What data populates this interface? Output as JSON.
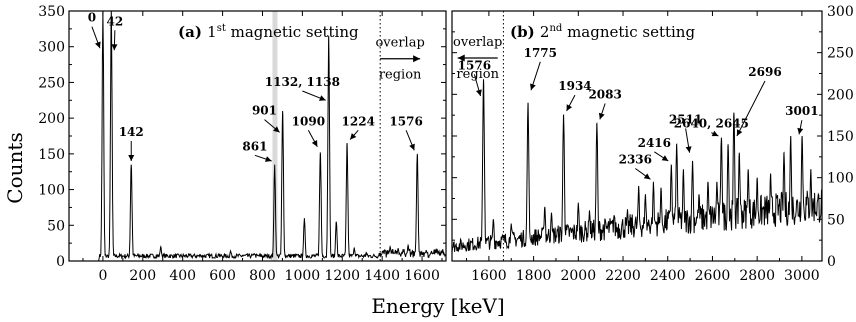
{
  "chart_data": [
    {
      "type": "line",
      "panel_title": "(a) 1st magnetic setting",
      "panel_tag": "(a)",
      "panel_text_main": "1",
      "panel_text_sup": "st",
      "panel_text_rest": "magnetic setting",
      "xlabel": "Energy [keV]",
      "ylabel": "Counts",
      "xlim": [
        -170,
        1720
      ],
      "ylim": [
        0,
        350
      ],
      "x_ticks": [
        0,
        200,
        400,
        600,
        800,
        1000,
        1200,
        1400,
        1600
      ],
      "y_ticks": [
        0,
        50,
        100,
        150,
        200,
        250,
        300,
        350
      ],
      "y_axis_side": "left",
      "grid": false,
      "shaded_band": [
        850,
        875
      ],
      "dotted_line_x": 1390,
      "annotations": [
        {
          "text": "overlap",
          "text2": "region",
          "direction": "right",
          "x_data": 1490,
          "y_data": 300
        }
      ],
      "peaks": [
        {
          "energy": 0,
          "counts": 350,
          "label": "0",
          "label_x": -55,
          "label_y": 335,
          "tip_y": 298
        },
        {
          "energy": 42,
          "counts": 350,
          "label": "42",
          "label_x": 60,
          "label_y": 330,
          "tip_y": 295
        },
        {
          "energy": 142,
          "counts": 135,
          "label": "142",
          "label_x": 142,
          "label_y": 175,
          "tip_y": 140
        },
        {
          "energy": 861,
          "counts": 135,
          "label": "861",
          "label_x": 762,
          "label_y": 155,
          "tip_y": 140
        },
        {
          "energy": 901,
          "counts": 210,
          "label": "901",
          "label_x": 810,
          "label_y": 205,
          "tip_y": 180
        },
        {
          "energy": 1090,
          "counts": 152,
          "label": "1090",
          "label_x": 1030,
          "label_y": 190,
          "tip_y": 160
        },
        {
          "energy": 1132,
          "counts": 315,
          "label": "1132, 1138",
          "label_x": 1000,
          "label_y": 245,
          "tip_y": 225
        },
        {
          "energy": 1224,
          "counts": 165,
          "label": "1224",
          "label_x": 1280,
          "label_y": 190,
          "tip_y": 170
        },
        {
          "energy": 1576,
          "counts": 150,
          "label": "1576",
          "label_x": 1520,
          "label_y": 190,
          "tip_y": 155
        }
      ],
      "minor_peaks": [
        [
          290,
          20
        ],
        [
          490,
          8
        ],
        [
          580,
          10
        ],
        [
          640,
          14
        ],
        [
          700,
          8
        ],
        [
          760,
          10
        ],
        [
          1010,
          60
        ],
        [
          1170,
          55
        ],
        [
          1260,
          18
        ],
        [
          1320,
          12
        ],
        [
          1440,
          20
        ],
        [
          1480,
          18
        ],
        [
          1530,
          22
        ],
        [
          1620,
          14
        ],
        [
          1680,
          10
        ]
      ]
    },
    {
      "type": "line",
      "panel_title": "(b) 2nd magnetic setting",
      "panel_tag": "(b)",
      "panel_text_main": "2",
      "panel_text_sup": "nd",
      "panel_text_rest": "magnetic setting",
      "xlabel": "Energy [keV]",
      "ylabel": "",
      "xlim": [
        1435,
        3090
      ],
      "ylim": [
        0,
        300
      ],
      "x_ticks": [
        1600,
        1800,
        2000,
        2200,
        2400,
        2600,
        2800,
        3000
      ],
      "y_ticks": [
        0,
        50,
        100,
        150,
        200,
        250,
        300
      ],
      "y_axis_side": "right",
      "grid": false,
      "dotted_line_x": 1665,
      "annotations": [
        {
          "text": "overlap",
          "text2": "region",
          "direction": "left",
          "x_data": 1550,
          "y_data": 258
        }
      ],
      "peaks": [
        {
          "energy": 1576,
          "counts": 218,
          "label": "1576",
          "label_x": 1535,
          "label_y": 230,
          "tip_y": 198
        },
        {
          "energy": 1775,
          "counts": 190,
          "label": "1775",
          "label_x": 1830,
          "label_y": 245,
          "tip_y": 205
        },
        {
          "energy": 1934,
          "counts": 175,
          "label": "1934",
          "label_x": 1985,
          "label_y": 205,
          "tip_y": 180
        },
        {
          "energy": 2083,
          "counts": 165,
          "label": "2083",
          "label_x": 2120,
          "label_y": 195,
          "tip_y": 170
        },
        {
          "energy": 2336,
          "counts": 95,
          "label": "2336",
          "label_x": 2255,
          "label_y": 117,
          "tip_y": 98
        },
        {
          "energy": 2416,
          "counts": 115,
          "label": "2416",
          "label_x": 2340,
          "label_y": 137,
          "tip_y": 120
        },
        {
          "energy": 2511,
          "counts": 120,
          "label": "2511",
          "label_x": 2480,
          "label_y": 165,
          "tip_y": 130
        },
        {
          "energy": 2640,
          "counts": 148,
          "label": "2640, 2645",
          "label_x": 2595,
          "label_y": 160,
          "tip_y": 150
        },
        {
          "energy": 2696,
          "counts": 178,
          "label": "2696",
          "label_x": 2835,
          "label_y": 222,
          "tip_y": 150
        },
        {
          "energy": 3001,
          "counts": 150,
          "label": "3001",
          "label_x": 3000,
          "label_y": 175,
          "tip_y": 152
        }
      ],
      "minor_peaks": [
        [
          1620,
          50
        ],
        [
          1700,
          45
        ],
        [
          1850,
          65
        ],
        [
          1880,
          58
        ],
        [
          2000,
          70
        ],
        [
          2050,
          60
        ],
        [
          2160,
          55
        ],
        [
          2220,
          62
        ],
        [
          2270,
          90
        ],
        [
          2300,
          80
        ],
        [
          2370,
          88
        ],
        [
          2440,
          140
        ],
        [
          2470,
          110
        ],
        [
          2540,
          80
        ],
        [
          2580,
          95
        ],
        [
          2620,
          95
        ],
        [
          2670,
          140
        ],
        [
          2720,
          130
        ],
        [
          2760,
          110
        ],
        [
          2800,
          100
        ],
        [
          2860,
          105
        ],
        [
          2920,
          130
        ],
        [
          2950,
          150
        ],
        [
          3040,
          110
        ]
      ]
    }
  ]
}
